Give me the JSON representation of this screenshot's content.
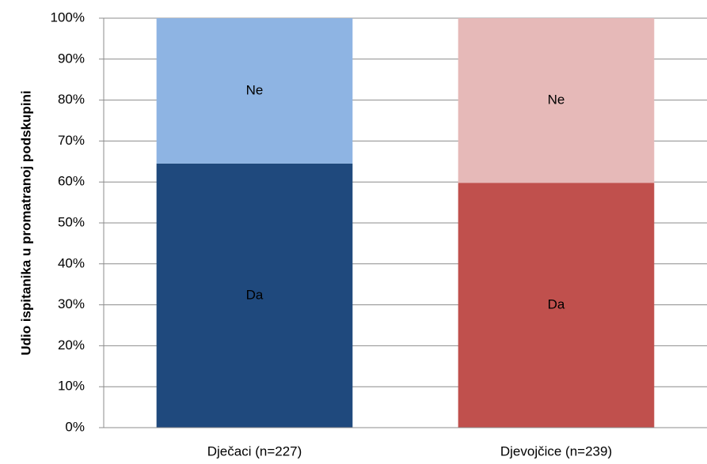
{
  "chart_data": {
    "type": "stacked_bar",
    "y_label": "Udio ispitanika u promatranoj podskupini",
    "categories": [
      "Dječaci (n=227)",
      "Djevojčice (n=239)"
    ],
    "series": [
      {
        "name": "Da",
        "colors": [
          "#1f497d",
          "#c0504d"
        ],
        "values": [
          64.5,
          59.8
        ]
      },
      {
        "name": "Ne",
        "colors": [
          "#8eb4e3",
          "#e6b9b8"
        ],
        "values": [
          35.5,
          40.2
        ]
      }
    ],
    "ylim": [
      0,
      100
    ],
    "yticks": [
      {
        "value": 0,
        "label": "0%"
      },
      {
        "value": 10,
        "label": "10%"
      },
      {
        "value": 20,
        "label": "20%"
      },
      {
        "value": 30,
        "label": "30%"
      },
      {
        "value": 40,
        "label": "40%"
      },
      {
        "value": 50,
        "label": "50%"
      },
      {
        "value": 60,
        "label": "60%"
      },
      {
        "value": 70,
        "label": "70%"
      },
      {
        "value": 80,
        "label": "80%"
      },
      {
        "value": 90,
        "label": "90%"
      },
      {
        "value": 100,
        "label": "100%"
      }
    ],
    "grid": true
  }
}
